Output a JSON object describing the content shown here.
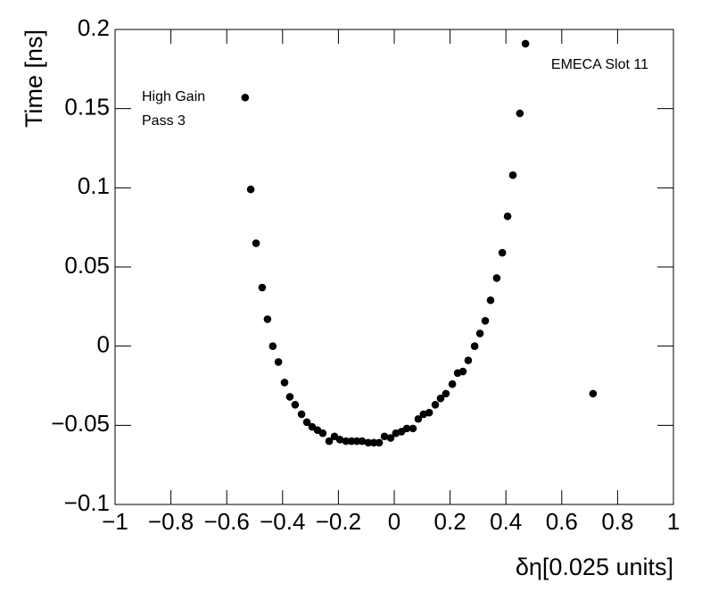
{
  "chart_data": {
    "type": "scatter",
    "xlabel": "δη[0.025 units]",
    "ylabel": "Time [ns]",
    "annotations": [
      "High Gain",
      "Pass 3",
      "EMECA Slot 11"
    ],
    "color": "#000000",
    "xlim": [
      -1,
      1
    ],
    "xticks": [
      {
        "value": -1,
        "label": "−1"
      },
      {
        "value": -0.8,
        "label": "−0.8"
      },
      {
        "value": -0.6,
        "label": "−0.6"
      },
      {
        "value": -0.4,
        "label": "−0.4"
      },
      {
        "value": -0.2,
        "label": "−0.2"
      },
      0,
      0.2,
      0.4,
      0.6,
      0.8,
      1
    ],
    "ylim": [
      -0.1,
      0.2
    ],
    "yticks": [
      {
        "value": -0.1,
        "label": "−0.1"
      },
      {
        "value": -0.05,
        "label": "−0.05"
      },
      0,
      0.05,
      0.1,
      0.15,
      0.2
    ],
    "x": [
      -0.534,
      -0.514,
      -0.495,
      -0.473,
      -0.454,
      -0.435,
      -0.415,
      -0.393,
      -0.374,
      -0.355,
      -0.332,
      -0.313,
      -0.294,
      -0.275,
      -0.256,
      -0.233,
      -0.214,
      -0.195,
      -0.173,
      -0.153,
      -0.134,
      -0.115,
      -0.093,
      -0.073,
      -0.054,
      -0.035,
      -0.013,
      0.006,
      0.026,
      0.045,
      0.067,
      0.086,
      0.105,
      0.125,
      0.147,
      0.166,
      0.185,
      0.208,
      0.227,
      0.246,
      0.265,
      0.288,
      0.307,
      0.326,
      0.345,
      0.367,
      0.387,
      0.406,
      0.425,
      0.45,
      0.47,
      0.712
    ],
    "values": [
      0.157,
      0.099,
      0.065,
      0.037,
      0.017,
      0,
      -0.01,
      -0.023,
      -0.032,
      -0.037,
      -0.043,
      -0.048,
      -0.051,
      -0.053,
      -0.055,
      -0.06,
      -0.057,
      -0.059,
      -0.06,
      -0.06,
      -0.06,
      -0.06,
      -0.061,
      -0.061,
      -0.061,
      -0.057,
      -0.058,
      -0.055,
      -0.054,
      -0.052,
      -0.052,
      -0.046,
      -0.043,
      -0.042,
      -0.037,
      -0.033,
      -0.03,
      -0.024,
      -0.017,
      -0.016,
      -0.009,
      0,
      0.008,
      0.016,
      0.029,
      0.043,
      0.059,
      0.082,
      0.108,
      0.147,
      0.191,
      -0.03
    ]
  }
}
